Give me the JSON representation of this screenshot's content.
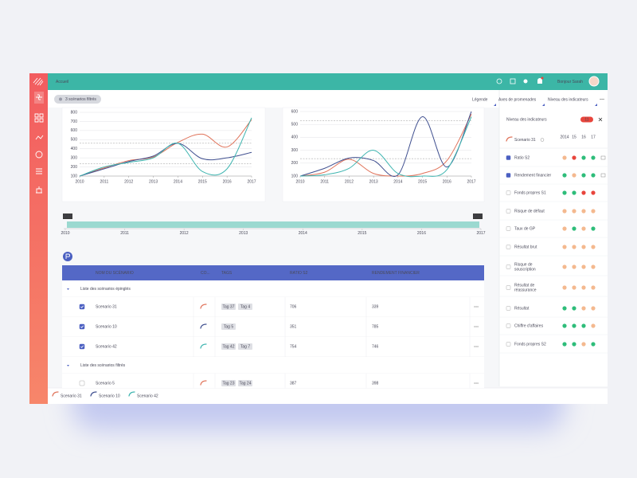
{
  "topbar": {
    "title": "Accueil",
    "greeting": "Bonjour Sarah"
  },
  "filter_chip": "3 scénarios filtrés",
  "tabs": [
    "Légende",
    "Axes de promenades",
    "Niveau des indicateurs"
  ],
  "charts": [
    {
      "type": "line",
      "x": [
        2010,
        2011,
        2012,
        2013,
        2014,
        2015,
        2016,
        2017
      ],
      "xlim": [
        2010,
        2017
      ],
      "ylim": [
        100,
        800
      ],
      "yticks": [
        100,
        200,
        300,
        400,
        500,
        600,
        700,
        800
      ],
      "reference_lines": [
        460,
        235
      ],
      "grid": true,
      "series": [
        {
          "color": "#e0735a",
          "values": [
            100,
            190,
            270,
            310,
            470,
            560,
            420,
            720
          ]
        },
        {
          "color": "#3f4f8f",
          "values": [
            100,
            180,
            260,
            320,
            460,
            290,
            300,
            360
          ]
        },
        {
          "color": "#3fb5b0",
          "values": [
            100,
            200,
            250,
            300,
            460,
            150,
            180,
            740
          ]
        }
      ]
    },
    {
      "type": "line",
      "x": [
        2010,
        2011,
        2012,
        2013,
        2014,
        2015,
        2016,
        2017
      ],
      "xlim": [
        2010,
        2017
      ],
      "ylim": [
        100,
        600
      ],
      "yticks": [
        100,
        200,
        300,
        400,
        500,
        600
      ],
      "reference_lines": [
        530,
        235
      ],
      "grid": true,
      "series": [
        {
          "color": "#e0735a",
          "values": [
            100,
            130,
            230,
            120,
            100,
            120,
            220,
            580
          ]
        },
        {
          "color": "#3f4f8f",
          "values": [
            100,
            160,
            240,
            220,
            110,
            560,
            170,
            600
          ]
        },
        {
          "color": "#3fb5b0",
          "values": [
            100,
            110,
            160,
            300,
            120,
            100,
            150,
            560
          ]
        }
      ]
    }
  ],
  "timeline": {
    "start": "2010",
    "end": "2017",
    "labels": [
      2010,
      2011,
      2012,
      2013,
      2014,
      2015,
      2016,
      2017
    ]
  },
  "table": {
    "columns": [
      "NOM DU SCÉNARIO",
      "CO...",
      "TAGS",
      "RATIO S2",
      "RENDEMENT FINANCIER"
    ],
    "groups": [
      {
        "title": "Liste des scénarios épinglés",
        "rows": [
          {
            "name": "Scenario 31",
            "color": "#e0735a",
            "checked": true,
            "tags": [
              "Tag 37",
              "Tag 4"
            ],
            "ratio_s2": 706,
            "rendement_financier": 339
          },
          {
            "name": "Scenario 10",
            "color": "#3f4f8f",
            "checked": true,
            "tags": [
              "Tag 5"
            ],
            "ratio_s2": 351,
            "rendement_financier": 785
          },
          {
            "name": "Scenario 42",
            "color": "#3fb5b0",
            "checked": true,
            "tags": [
              "Tag 42",
              "Tag 7"
            ],
            "ratio_s2": 754,
            "rendement_financier": 746
          }
        ]
      },
      {
        "title": "Liste des scénarios filtrés",
        "rows": [
          {
            "name": "Scenario 5",
            "color": "#e0735a",
            "checked": false,
            "tags": [
              "Tag 23",
              "Tag 24"
            ],
            "ratio_s2": 387,
            "rendement_financier": 398
          }
        ]
      }
    ]
  },
  "panel": {
    "title": "Niveau des indicateurs",
    "badge": "11",
    "years": [
      "2014",
      "15",
      "16",
      "17"
    ],
    "scenario": "Scenario 31",
    "indicators": [
      {
        "label_lines": [
          "Ratio S2"
        ],
        "checked": true,
        "dots": [
          "#f4b98f",
          "#e8453c",
          "#2ebd7a",
          "#2ebd7a"
        ]
      },
      {
        "label_lines": [
          "Rendement financier"
        ],
        "checked": true,
        "dots": [
          "#2ebd7a",
          "#f4b98f",
          "#2ebd7a",
          "#2ebd7a"
        ]
      },
      {
        "label_lines": [
          "Fonds propres S1"
        ],
        "checked": false,
        "dots": [
          "#2ebd7a",
          "#2ebd7a",
          "#e8453c",
          "#e8453c"
        ]
      },
      {
        "label_lines": [
          "Risque de défaut"
        ],
        "checked": false,
        "dots": [
          "#f4b98f",
          "#f4b98f",
          "#f4b98f",
          "#f4b98f"
        ]
      },
      {
        "label_lines": [
          "Taux de GP"
        ],
        "checked": false,
        "dots": [
          "#f4b98f",
          "#2ebd7a",
          "#f4b98f",
          "#2ebd7a"
        ]
      },
      {
        "label_lines": [
          "Résultat brut"
        ],
        "checked": false,
        "dots": [
          "#f4b98f",
          "#f4b98f",
          "#f4b98f",
          "#f4b98f"
        ]
      },
      {
        "label_lines": [
          "Risque de",
          "souscription"
        ],
        "checked": false,
        "dots": [
          "#f4b98f",
          "#f4b98f",
          "#f4b98f",
          "#f4b98f"
        ]
      },
      {
        "label_lines": [
          "Résultat de",
          "réassurance"
        ],
        "checked": false,
        "dots": [
          "#f4b98f",
          "#f4b98f",
          "#f4b98f",
          "#f4b98f"
        ]
      },
      {
        "label_lines": [
          "Résultat"
        ],
        "checked": false,
        "dots": [
          "#2ebd7a",
          "#2ebd7a",
          "#f4b98f",
          "#f4b98f"
        ]
      },
      {
        "label_lines": [
          "Chiffre d'affaires"
        ],
        "checked": false,
        "dots": [
          "#2ebd7a",
          "#2ebd7a",
          "#2ebd7a",
          "#f4b98f"
        ]
      },
      {
        "label_lines": [
          "Fonds propres S2"
        ],
        "checked": false,
        "dots": [
          "#2ebd7a",
          "#2ebd7a",
          "#f4b98f",
          "#2ebd7a"
        ]
      }
    ]
  },
  "legend": [
    {
      "name": "Scenario 31",
      "color": "#e0735a"
    },
    {
      "name": "Scenario 10",
      "color": "#3f4f8f"
    },
    {
      "name": "Scenario 42",
      "color": "#3fb5b0"
    }
  ]
}
